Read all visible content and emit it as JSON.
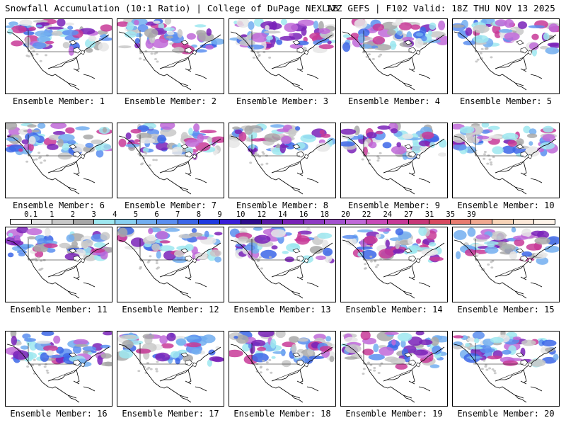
{
  "header": {
    "left": "Snowfall Accumulation (10:1 Ratio) | College of DuPage NEXLAB",
    "right": "12Z GEFS | F102 Valid: 18Z THU NOV 13 2025"
  },
  "members": [
    "Ensemble Member: 1",
    "Ensemble Member: 2",
    "Ensemble Member: 3",
    "Ensemble Member: 4",
    "Ensemble Member: 5",
    "Ensemble Member: 6",
    "Ensemble Member: 7",
    "Ensemble Member: 8",
    "Ensemble Member: 9",
    "Ensemble Member: 10",
    "Ensemble Member: 11",
    "Ensemble Member: 12",
    "Ensemble Member: 13",
    "Ensemble Member: 14",
    "Ensemble Member: 15",
    "Ensemble Member: 16",
    "Ensemble Member: 17",
    "Ensemble Member: 18",
    "Ensemble Member: 19",
    "Ensemble Member: 20"
  ],
  "colorbar": {
    "ticks": [
      "0.1",
      "1",
      "2",
      "3",
      "4",
      "5",
      "6",
      "7",
      "8",
      "9",
      "10",
      "12",
      "14",
      "16",
      "18",
      "20",
      "22",
      "24",
      "27",
      "31",
      "35",
      "39"
    ],
    "colors": [
      "#ffffff",
      "#e6e6e6",
      "#c8c8c8",
      "#a8a8a8",
      "#9ee8f0",
      "#88d0f0",
      "#72aef0",
      "#5a8ef0",
      "#3c66e8",
      "#1e3ae0",
      "#3a1ed8",
      "#2c0c8c",
      "#5a1aa8",
      "#7a22b8",
      "#8e3ac4",
      "#a452d0",
      "#c068d8",
      "#c84ab8",
      "#c83a98",
      "#c83878",
      "#d84a60",
      "#e87c70",
      "#f0a890",
      "#f8d4b8",
      "#fce8d8",
      "#fff4ea"
    ]
  }
}
